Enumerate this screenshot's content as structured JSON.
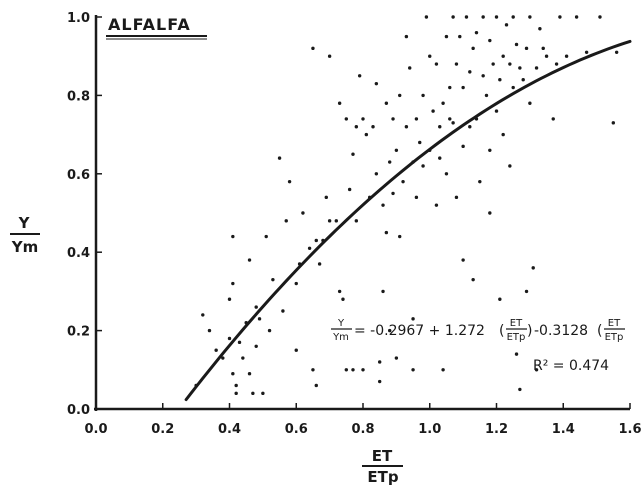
{
  "chart_data": {
    "type": "scatter",
    "title": "ALFALFA",
    "xlabel": {
      "numerator": "ET",
      "denominator": "ETp"
    },
    "ylabel": {
      "numerator": "Y",
      "denominator": "Ym"
    },
    "xlim": [
      0.0,
      1.6
    ],
    "ylim": [
      0.0,
      1.0
    ],
    "xticks": [
      "0.0",
      "0.2",
      "0.4",
      "0.6",
      "0.8",
      "1.0",
      "1.2",
      "1.4",
      "1.6"
    ],
    "yticks": [
      "0.0",
      "0.2",
      "0.4",
      "0.6",
      "0.8",
      "1.0"
    ],
    "equation": {
      "lhs_numerator": "Y",
      "lhs_denominator": "Ym",
      "part1": "= -0.2967 + 1.272",
      "frac_numerator": "ET",
      "frac_denominator": "ETp",
      "part2": "-0.3128",
      "frac2_numerator": "ET",
      "frac2_denominator": "ETp",
      "r2_label": "R² = 0.474"
    },
    "fit": {
      "intercept": -0.2967,
      "linear": 1.272,
      "quadratic": -0.3128,
      "x_start": 0.27,
      "x_end": 1.6
    },
    "points": [
      [
        0.3,
        0.06
      ],
      [
        0.32,
        0.24
      ],
      [
        0.34,
        0.2
      ],
      [
        0.36,
        0.15
      ],
      [
        0.38,
        0.13
      ],
      [
        0.4,
        0.28
      ],
      [
        0.4,
        0.18
      ],
      [
        0.41,
        0.44
      ],
      [
        0.41,
        0.32
      ],
      [
        0.41,
        0.09
      ],
      [
        0.42,
        0.06
      ],
      [
        0.42,
        0.04
      ],
      [
        0.43,
        0.17
      ],
      [
        0.44,
        0.13
      ],
      [
        0.45,
        0.22
      ],
      [
        0.46,
        0.09
      ],
      [
        0.46,
        0.38
      ],
      [
        0.47,
        0.04
      ],
      [
        0.48,
        0.16
      ],
      [
        0.48,
        0.26
      ],
      [
        0.49,
        0.23
      ],
      [
        0.5,
        0.04
      ],
      [
        0.51,
        0.44
      ],
      [
        0.52,
        0.2
      ],
      [
        0.53,
        0.33
      ],
      [
        0.55,
        0.64
      ],
      [
        0.56,
        0.25
      ],
      [
        0.57,
        0.48
      ],
      [
        0.58,
        0.58
      ],
      [
        0.6,
        0.32
      ],
      [
        0.61,
        0.37
      ],
      [
        0.62,
        0.5
      ],
      [
        0.64,
        0.41
      ],
      [
        0.65,
        0.92
      ],
      [
        0.65,
        0.1
      ],
      [
        0.66,
        0.43
      ],
      [
        0.67,
        0.37
      ],
      [
        0.68,
        0.43
      ],
      [
        0.69,
        0.54
      ],
      [
        0.7,
        0.9
      ],
      [
        0.7,
        0.48
      ],
      [
        0.72,
        0.48
      ],
      [
        0.73,
        0.78
      ],
      [
        0.74,
        0.28
      ],
      [
        0.75,
        0.1
      ],
      [
        0.75,
        0.74
      ],
      [
        0.76,
        0.56
      ],
      [
        0.77,
        0.65
      ],
      [
        0.78,
        0.48
      ],
      [
        0.78,
        0.72
      ],
      [
        0.79,
        0.85
      ],
      [
        0.8,
        0.1
      ],
      [
        0.8,
        0.74
      ],
      [
        0.81,
        0.7
      ],
      [
        0.82,
        0.54
      ],
      [
        0.83,
        0.72
      ],
      [
        0.84,
        0.6
      ],
      [
        0.84,
        0.83
      ],
      [
        0.85,
        0.07
      ],
      [
        0.85,
        0.12
      ],
      [
        0.86,
        0.3
      ],
      [
        0.86,
        0.52
      ],
      [
        0.87,
        0.78
      ],
      [
        0.88,
        0.2
      ],
      [
        0.88,
        0.63
      ],
      [
        0.89,
        0.74
      ],
      [
        0.89,
        0.55
      ],
      [
        0.9,
        0.13
      ],
      [
        0.9,
        0.66
      ],
      [
        0.91,
        0.8
      ],
      [
        0.91,
        0.44
      ],
      [
        0.92,
        0.58
      ],
      [
        0.93,
        0.72
      ],
      [
        0.93,
        0.95
      ],
      [
        0.94,
        0.87
      ],
      [
        0.95,
        0.63
      ],
      [
        0.95,
        0.1
      ],
      [
        0.96,
        0.74
      ],
      [
        0.96,
        0.54
      ],
      [
        0.97,
        0.68
      ],
      [
        0.98,
        0.8
      ],
      [
        0.99,
        1.0
      ],
      [
        1.0,
        0.66
      ],
      [
        1.0,
        0.9
      ],
      [
        1.01,
        0.76
      ],
      [
        1.02,
        0.52
      ],
      [
        1.02,
        0.88
      ],
      [
        1.03,
        0.72
      ],
      [
        1.04,
        0.78
      ],
      [
        1.04,
        0.1
      ],
      [
        1.05,
        0.95
      ],
      [
        1.05,
        0.6
      ],
      [
        1.06,
        0.82
      ],
      [
        1.07,
        0.73
      ],
      [
        1.07,
        1.0
      ],
      [
        1.08,
        0.88
      ],
      [
        1.08,
        0.54
      ],
      [
        1.09,
        0.95
      ],
      [
        1.1,
        0.82
      ],
      [
        1.1,
        0.67
      ],
      [
        1.1,
        0.38
      ],
      [
        1.11,
        1.0
      ],
      [
        1.12,
        0.72
      ],
      [
        1.12,
        0.86
      ],
      [
        1.13,
        0.92
      ],
      [
        1.14,
        0.74
      ],
      [
        1.14,
        0.96
      ],
      [
        1.15,
        0.58
      ],
      [
        1.16,
        0.85
      ],
      [
        1.16,
        1.0
      ],
      [
        1.17,
        0.8
      ],
      [
        1.18,
        0.66
      ],
      [
        1.18,
        0.94
      ],
      [
        1.19,
        0.88
      ],
      [
        1.2,
        0.76
      ],
      [
        1.2,
        1.0
      ],
      [
        1.21,
        0.84
      ],
      [
        1.22,
        0.9
      ],
      [
        1.22,
        0.7
      ],
      [
        1.23,
        0.98
      ],
      [
        1.24,
        0.62
      ],
      [
        1.24,
        0.88
      ],
      [
        1.25,
        0.82
      ],
      [
        1.25,
        1.0
      ],
      [
        1.26,
        0.93
      ],
      [
        1.27,
        0.05
      ],
      [
        1.27,
        0.87
      ],
      [
        1.28,
        0.84
      ],
      [
        1.29,
        0.92
      ],
      [
        1.3,
        0.78
      ],
      [
        1.3,
        1.0
      ],
      [
        1.31,
        0.36
      ],
      [
        1.32,
        0.87
      ],
      [
        1.33,
        0.97
      ],
      [
        1.34,
        0.92
      ],
      [
        1.35,
        0.9
      ],
      [
        1.37,
        0.74
      ],
      [
        1.38,
        0.88
      ],
      [
        1.39,
        1.0
      ],
      [
        1.41,
        0.9
      ],
      [
        1.44,
        1.0
      ],
      [
        1.47,
        0.91
      ],
      [
        1.51,
        1.0
      ],
      [
        1.55,
        0.73
      ],
      [
        1.56,
        0.91
      ],
      [
        0.98,
        0.62
      ],
      [
        1.03,
        0.64
      ],
      [
        0.87,
        0.45
      ],
      [
        0.73,
        0.3
      ],
      [
        1.06,
        0.74
      ],
      [
        0.6,
        0.15
      ],
      [
        0.66,
        0.06
      ],
      [
        0.77,
        0.1
      ],
      [
        0.95,
        0.23
      ],
      [
        1.13,
        0.33
      ],
      [
        1.21,
        0.28
      ],
      [
        1.29,
        0.3
      ],
      [
        1.32,
        0.1
      ],
      [
        1.26,
        0.14
      ],
      [
        1.18,
        0.5
      ]
    ]
  }
}
